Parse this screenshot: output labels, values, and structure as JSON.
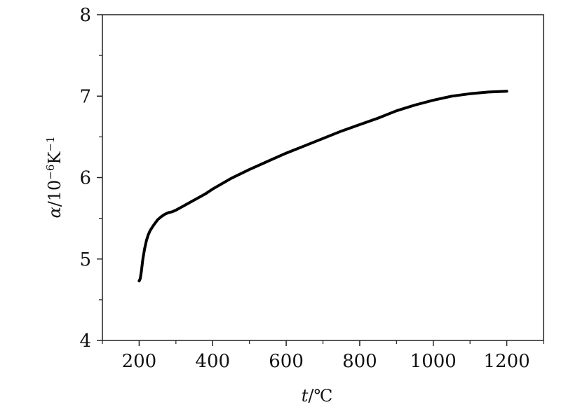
{
  "chart_data": {
    "type": "line",
    "xlabel_symbol": "t",
    "xlabel_unit": "/℃",
    "ylabel_symbol": "α",
    "ylabel_unit_base": "/10",
    "ylabel_unit_exp": "−6",
    "ylabel_unit_K": "K",
    "ylabel_unit_K_exp": "−1",
    "xlim": [
      100,
      1300
    ],
    "ylim": [
      4,
      8
    ],
    "x_ticks": [
      200,
      400,
      600,
      800,
      1000,
      1200
    ],
    "x_tick_labels": [
      "200",
      "400",
      "600",
      "800",
      "1000",
      "1200"
    ],
    "y_ticks": [
      4,
      5,
      6,
      7,
      8
    ],
    "y_tick_labels": [
      "4",
      "5",
      "6",
      "7",
      "8"
    ],
    "grid": false,
    "series": [
      {
        "color": "#000000",
        "x": [
          200,
          203,
          206,
          210,
          215,
          220,
          225,
          230,
          240,
          250,
          260,
          270,
          280,
          290,
          300,
          320,
          340,
          360,
          380,
          400,
          450,
          500,
          550,
          600,
          650,
          700,
          750,
          800,
          850,
          900,
          950,
          1000,
          1050,
          1100,
          1150,
          1200
        ],
        "y": [
          4.73,
          4.76,
          4.85,
          5.0,
          5.13,
          5.23,
          5.3,
          5.35,
          5.42,
          5.48,
          5.52,
          5.55,
          5.57,
          5.58,
          5.6,
          5.65,
          5.7,
          5.75,
          5.8,
          5.86,
          5.99,
          6.1,
          6.2,
          6.3,
          6.39,
          6.48,
          6.57,
          6.65,
          6.73,
          6.82,
          6.89,
          6.95,
          7.0,
          7.03,
          7.05,
          7.06
        ]
      }
    ]
  }
}
